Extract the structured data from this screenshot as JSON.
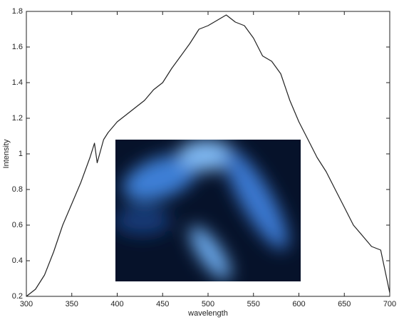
{
  "chart_data": {
    "type": "line",
    "x_label": "wavelength",
    "y_label": "Intensity",
    "x": [
      300,
      310,
      320,
      330,
      340,
      350,
      360,
      370,
      375,
      378,
      385,
      390,
      400,
      410,
      420,
      430,
      440,
      450,
      460,
      470,
      480,
      490,
      500,
      510,
      520,
      530,
      540,
      550,
      560,
      570,
      580,
      590,
      600,
      610,
      620,
      630,
      640,
      650,
      660,
      670,
      680,
      690,
      700
    ],
    "values": [
      0.2,
      0.24,
      0.32,
      0.45,
      0.6,
      0.72,
      0.84,
      0.98,
      1.06,
      0.95,
      1.08,
      1.12,
      1.18,
      1.22,
      1.26,
      1.3,
      1.36,
      1.4,
      1.48,
      1.55,
      1.62,
      1.7,
      1.72,
      1.75,
      1.78,
      1.74,
      1.72,
      1.65,
      1.55,
      1.52,
      1.45,
      1.3,
      1.18,
      1.08,
      0.98,
      0.9,
      0.8,
      0.7,
      0.6,
      0.54,
      0.48,
      0.46,
      0.22
    ],
    "color": "#222222",
    "xlim": [
      300,
      700
    ],
    "xticks": [
      300,
      350,
      400,
      450,
      500,
      550,
      600,
      650,
      700
    ],
    "ylim": [
      0.2,
      1.8
    ],
    "yticks": [
      0.2,
      0.4,
      0.6,
      0.8,
      1,
      1.2,
      1.4,
      1.6,
      1.8
    ],
    "grid": false
  }
}
